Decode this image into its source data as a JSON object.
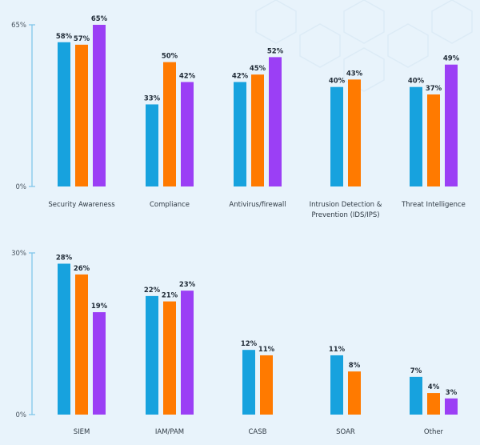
{
  "colors": {
    "series_a": "#17a2de",
    "series_b": "#ff7a00",
    "series_c": "#9b3ff5",
    "axis": "#7ac4ea"
  },
  "chart_data": [
    {
      "type": "bar",
      "categories": [
        "Security Awareness",
        "Compliance",
        "Antivirus/firewall",
        "Intrusion Detection & Prevention (IDS/IPS)",
        "Threat Intelligence"
      ],
      "category_lines": [
        [
          "Security Awareness"
        ],
        [
          "Compliance"
        ],
        [
          "Antivirus/firewall"
        ],
        [
          "Intrusion Detection &",
          "Prevention (IDS/IPS)"
        ],
        [
          "Threat Intelligence"
        ]
      ],
      "series": [
        {
          "values": [
            58,
            33,
            42,
            40,
            40
          ]
        },
        {
          "values": [
            57,
            50,
            45,
            43,
            37
          ]
        },
        {
          "values": [
            65,
            42,
            52,
            null,
            49
          ]
        }
      ],
      "value_labels": [
        [
          "58%",
          "33%",
          "42%",
          "40%",
          "40%"
        ],
        [
          "57%",
          "50%",
          "45%",
          "43%",
          "37%"
        ],
        [
          "65%",
          "42%",
          "52%",
          null,
          "49%"
        ]
      ],
      "yticks": [
        "0%",
        "65%"
      ],
      "ylim": [
        0,
        65
      ]
    },
    {
      "type": "bar",
      "categories": [
        "SIEM",
        "IAM/PAM",
        "CASB",
        "SOAR",
        "Other"
      ],
      "category_lines": [
        [
          "SIEM"
        ],
        [
          "IAM/PAM"
        ],
        [
          "CASB"
        ],
        [
          "SOAR"
        ],
        [
          "Other"
        ]
      ],
      "series": [
        {
          "values": [
            28,
            22,
            12,
            11,
            7
          ]
        },
        {
          "values": [
            26,
            21,
            11,
            8,
            4
          ]
        },
        {
          "values": [
            19,
            23,
            null,
            null,
            3
          ]
        }
      ],
      "value_labels": [
        [
          "28%",
          "22%",
          "12%",
          "11%",
          "7%"
        ],
        [
          "26%",
          "21%",
          "11%",
          "8%",
          "4%"
        ],
        [
          "19%",
          "23%",
          null,
          null,
          "3%"
        ]
      ],
      "yticks": [
        "0%",
        "30%"
      ],
      "ylim": [
        0,
        30
      ]
    }
  ]
}
